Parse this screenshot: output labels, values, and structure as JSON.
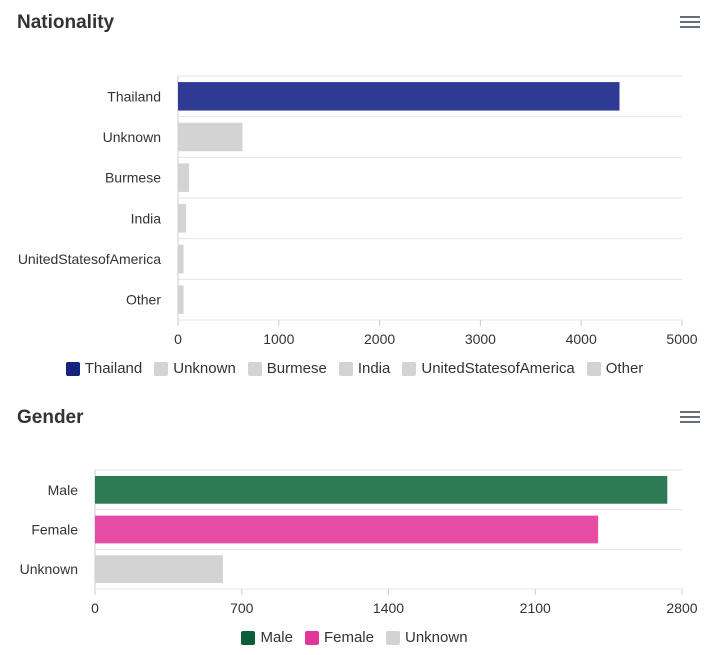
{
  "nationality": {
    "title": "Nationality",
    "menu_icon": "hamburger-menu-icon",
    "chart_data": {
      "type": "bar",
      "orientation": "horizontal",
      "categories": [
        "Thailand",
        "Unknown",
        "Burmese",
        "India",
        "UnitedStatesofAmerica",
        "Other"
      ],
      "values": [
        4380,
        640,
        110,
        80,
        55,
        55
      ],
      "colors": [
        "#2e3a94",
        "#d3d3d3",
        "#d3d3d3",
        "#d3d3d3",
        "#d3d3d3",
        "#d3d3d3"
      ],
      "xlim": [
        0,
        5000
      ],
      "xticks": [
        "0",
        "1000",
        "2000",
        "3000",
        "4000",
        "5000"
      ],
      "grid": true,
      "legend_position": "bottom"
    },
    "legend": [
      {
        "label": "Thailand",
        "color": "#13237e"
      },
      {
        "label": "Unknown",
        "color": "#d3d3d3"
      },
      {
        "label": "Burmese",
        "color": "#d3d3d3"
      },
      {
        "label": "India",
        "color": "#d3d3d3"
      },
      {
        "label": "UnitedStatesofAmerica",
        "color": "#d3d3d3"
      },
      {
        "label": "Other",
        "color": "#d3d3d3"
      }
    ]
  },
  "gender": {
    "title": "Gender",
    "menu_icon": "hamburger-menu-icon",
    "chart_data": {
      "type": "bar",
      "orientation": "horizontal",
      "categories": [
        "Male",
        "Female",
        "Unknown"
      ],
      "values": [
        2730,
        2400,
        610
      ],
      "colors": [
        "#2e7a55",
        "#e64ca3",
        "#d3d3d3"
      ],
      "xlim": [
        0,
        2800
      ],
      "xticks": [
        "0",
        "700",
        "1400",
        "2100",
        "2800"
      ],
      "grid": true,
      "legend_position": "bottom"
    },
    "legend": [
      {
        "label": "Male",
        "color": "#0b5e3a"
      },
      {
        "label": "Female",
        "color": "#e0369a"
      },
      {
        "label": "Unknown",
        "color": "#d3d3d3"
      }
    ]
  }
}
